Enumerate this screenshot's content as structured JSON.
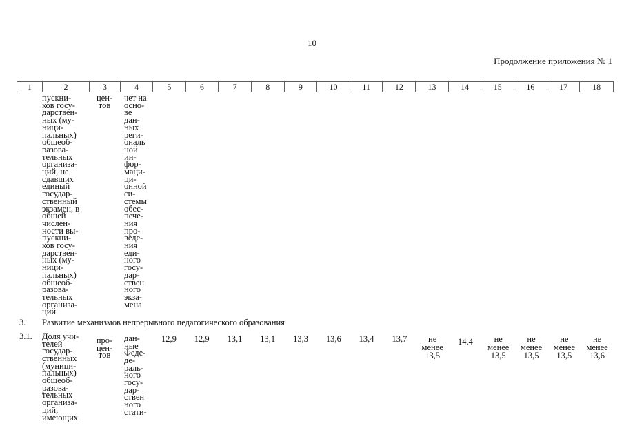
{
  "page": {
    "number": "10",
    "continuation_note": "Продолжение приложения № 1"
  },
  "table": {
    "column_numbers": [
      "1",
      "2",
      "3",
      "4",
      "5",
      "6",
      "7",
      "8",
      "9",
      "10",
      "11",
      "12",
      "13",
      "14",
      "15",
      "16",
      "17",
      "18"
    ],
    "continuation_row": {
      "indicator": "пускни-\nков госу-\nдарствен-\nных (му-\nници-\nпальных)\nобщеоб-\nразова-\nтельных\nорганиза-\nций, не\nсдавших\nединый\nгосудар-\nственный\nэкзамен, в\nобщей\nчислен-\nности вы-\nпускни-\nков госу-\nдарствен-\nных (му-\nници-\nпальных)\nобщеоб-\nразова-\nтельных\nорганиза-\nций",
      "unit": "цен-\nтов",
      "source": "чет на\nосно-\nве\nдан-\nных\nреги-\nональ\nной\nин-\nфор-\nмаци-\nци-\nонной\nси-\nстемы\nобес-\nпече-\nния\nпро-\nведе-\nния\nеди-\nного\nгосу-\nдар-\nствен\nного\nэкза-\nмена"
    },
    "section_row": {
      "id": "3.",
      "title": "Развитие механизмов непрерывного педагогического образования"
    },
    "indicator_row": {
      "id": "3.1.",
      "indicator": "Доля учи-\nтелей\nгосудар-\nственных\n(муници-\nпальных)\nобщеоб-\nразова-\nтельных\nорганиза-\nций,\nимеющих",
      "unit": "про-\nцен-\nтов",
      "source": "дан-\nные\nФеде-\nде-\nраль-\nного\nгосу-\nдар-\nствен\nного\nстати-",
      "values": [
        "12,9",
        "12,9",
        "13,1",
        "13,1",
        "13,3",
        "13,6",
        "13,4",
        "13,7",
        "не\nменее\n13,5",
        "14,4",
        "не\nменее\n13,5",
        "не\nменее\n13,5",
        "не\nменее\n13,5",
        "не\nменее\n13,6"
      ]
    }
  }
}
